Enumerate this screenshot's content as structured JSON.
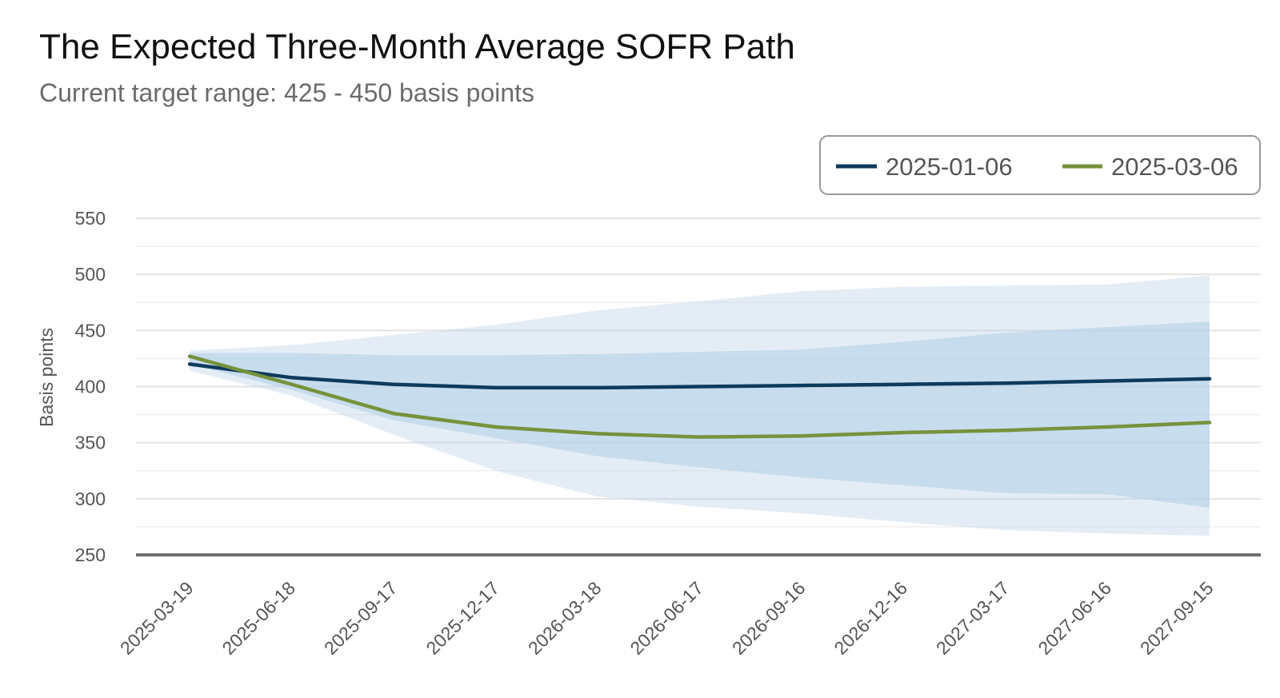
{
  "chart_data": {
    "type": "line",
    "title": "The Expected Three-Month Average SOFR Path",
    "subtitle": "Current target range: 425 - 450 basis points",
    "xlabel": "",
    "ylabel": "Basis points",
    "ylim": [
      250,
      550
    ],
    "yticks": [
      250,
      300,
      350,
      400,
      450,
      500,
      550
    ],
    "grid": true,
    "legend_position": "top-right",
    "categories": [
      "2025-03-19",
      "2025-06-18",
      "2025-09-17",
      "2025-12-17",
      "2026-03-18",
      "2026-06-17",
      "2026-09-16",
      "2026-12-16",
      "2027-03-17",
      "2027-06-16",
      "2027-09-15"
    ],
    "series": [
      {
        "name": "2025-01-06",
        "color": "#0e3a5c",
        "values": [
          420,
          408,
          402,
          399,
          399,
          400,
          401,
          402,
          403,
          405,
          407
        ]
      },
      {
        "name": "2025-03-06",
        "color": "#76923c",
        "values": [
          427,
          402,
          376,
          364,
          358,
          355,
          356,
          359,
          361,
          364,
          368
        ]
      }
    ],
    "bands": [
      {
        "color": "#bed3e6",
        "upper": [
          432,
          437,
          446,
          455,
          468,
          476,
          485,
          489,
          490,
          491,
          499
        ],
        "lower": [
          414,
          392,
          357,
          325,
          302,
          293,
          287,
          279,
          272,
          269,
          267
        ]
      },
      {
        "color": "#bbd6ea",
        "upper": [
          430,
          430,
          428,
          428,
          429,
          431,
          433,
          440,
          448,
          453,
          458
        ],
        "lower": [
          420,
          397,
          370,
          354,
          338,
          328,
          319,
          312,
          305,
          304,
          292
        ]
      }
    ]
  }
}
